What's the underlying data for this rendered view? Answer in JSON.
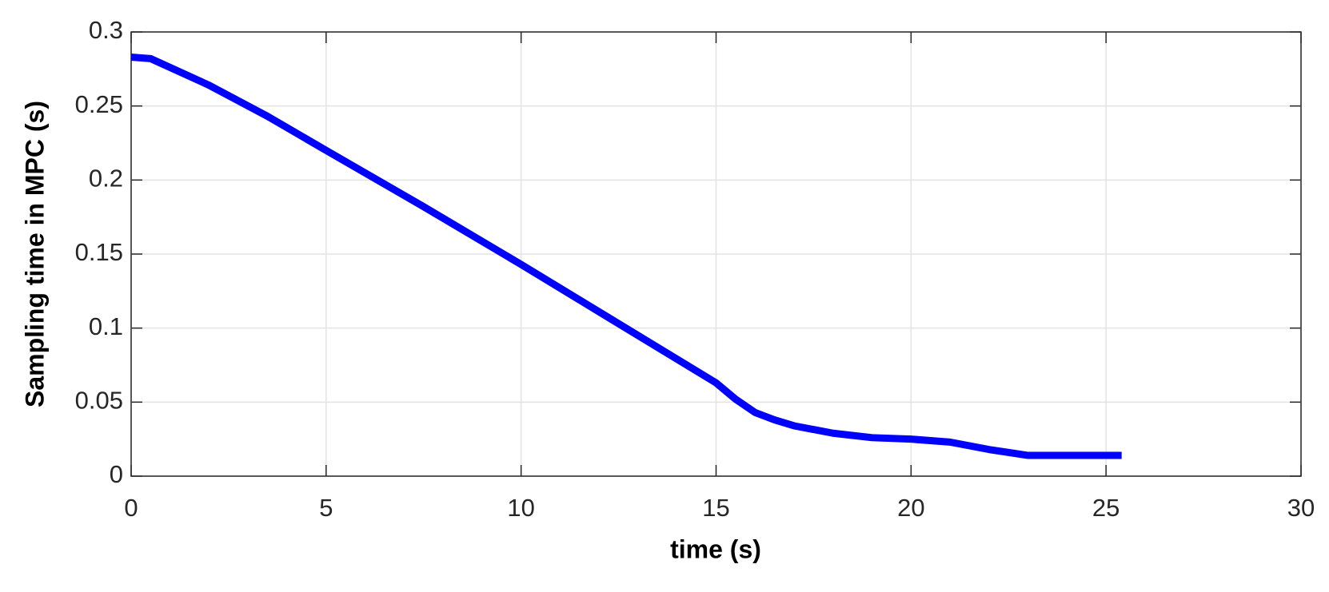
{
  "chart_data": {
    "type": "line",
    "xlabel": "time (s)",
    "ylabel": "Sampling time in MPC (s)",
    "x": [
      0,
      0.5,
      2,
      3.5,
      5,
      7.5,
      10,
      12.5,
      15,
      15.5,
      16,
      16.5,
      17,
      18,
      19,
      20,
      21,
      22,
      23,
      24,
      25.4
    ],
    "series": [
      {
        "color": "#0000ff",
        "values": [
          0.283,
          0.282,
          0.264,
          0.243,
          0.22,
          0.182,
          0.143,
          0.103,
          0.063,
          0.052,
          0.043,
          0.038,
          0.034,
          0.029,
          0.026,
          0.025,
          0.023,
          0.018,
          0.014,
          0.014,
          0.014
        ]
      }
    ],
    "xlim": [
      0,
      30
    ],
    "xticks": [
      0,
      5,
      10,
      15,
      20,
      25,
      30
    ],
    "ylim": [
      0,
      0.3
    ],
    "yticks": [
      0,
      0.05,
      0.1,
      0.15,
      0.2,
      0.25,
      0.3
    ],
    "grid": true
  }
}
